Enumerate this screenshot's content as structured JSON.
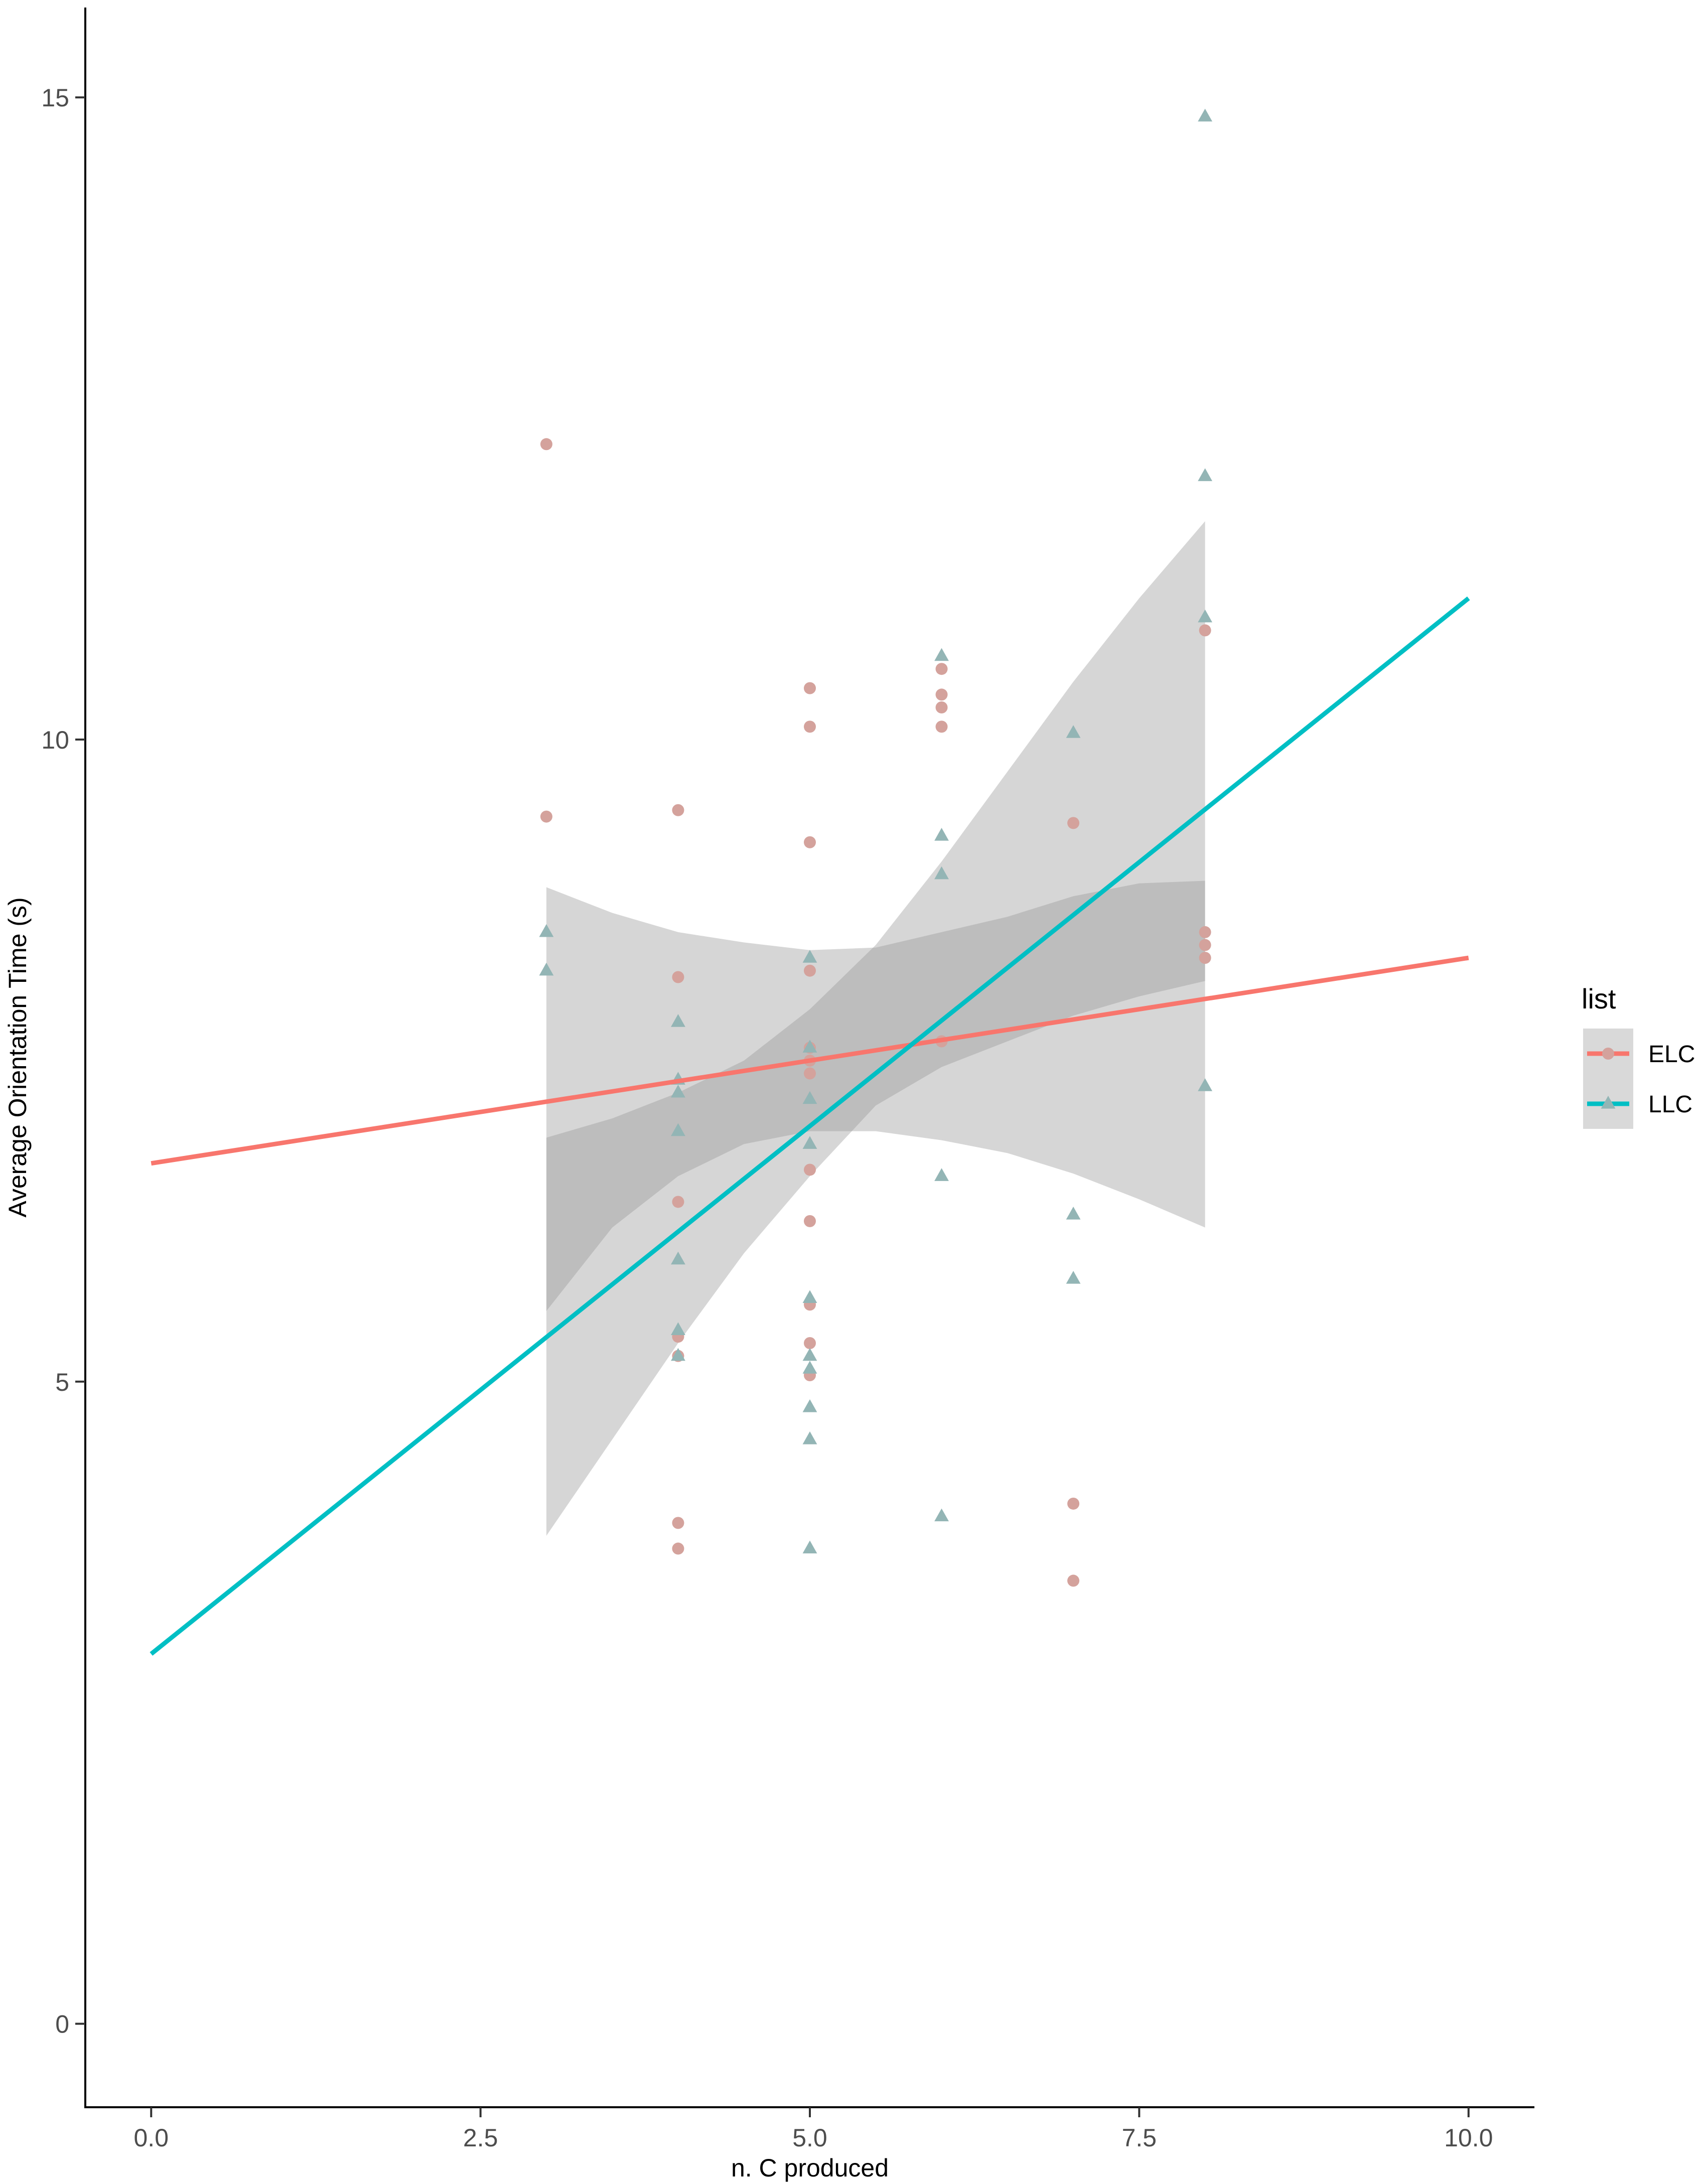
{
  "chart_data": {
    "type": "scatter",
    "title": "",
    "xlabel": "n. C produced",
    "ylabel": "Average Orientation Time (s)",
    "xlim": [
      -0.5,
      10.5
    ],
    "ylim": [
      -0.65,
      15.7
    ],
    "x_ticks": [
      0,
      2.5,
      5,
      7.5,
      10
    ],
    "x_tick_labels": [
      "0.0",
      "2.5",
      "5.0",
      "7.5",
      "10.0"
    ],
    "y_ticks": [
      0,
      5,
      10,
      15
    ],
    "y_tick_labels": [
      "0",
      "5",
      "10",
      "15"
    ],
    "grid": false,
    "legend": {
      "title": "list",
      "placement": "right"
    },
    "series": [
      {
        "name": "ELC",
        "color": "#F8766D",
        "point_color": "#D4A29C",
        "marker": "circle",
        "points": [
          {
            "x": 3,
            "y": 12.3
          },
          {
            "x": 3,
            "y": 9.4
          },
          {
            "x": 4,
            "y": 9.45
          },
          {
            "x": 4,
            "y": 8.15
          },
          {
            "x": 4,
            "y": 6.4
          },
          {
            "x": 4,
            "y": 5.35
          },
          {
            "x": 4,
            "y": 5.2
          },
          {
            "x": 4,
            "y": 3.9
          },
          {
            "x": 4,
            "y": 3.7
          },
          {
            "x": 5,
            "y": 10.4
          },
          {
            "x": 5,
            "y": 10.1
          },
          {
            "x": 5,
            "y": 9.2
          },
          {
            "x": 5,
            "y": 8.2
          },
          {
            "x": 5,
            "y": 7.6
          },
          {
            "x": 5,
            "y": 7.5
          },
          {
            "x": 5,
            "y": 7.4
          },
          {
            "x": 5,
            "y": 6.65
          },
          {
            "x": 5,
            "y": 6.25
          },
          {
            "x": 5,
            "y": 5.6
          },
          {
            "x": 5,
            "y": 5.3
          },
          {
            "x": 5,
            "y": 5.05
          },
          {
            "x": 6,
            "y": 10.55
          },
          {
            "x": 6,
            "y": 10.35
          },
          {
            "x": 6,
            "y": 10.25
          },
          {
            "x": 6,
            "y": 10.1
          },
          {
            "x": 6,
            "y": 7.65
          },
          {
            "x": 7,
            "y": 9.35
          },
          {
            "x": 7,
            "y": 4.05
          },
          {
            "x": 7,
            "y": 3.45
          },
          {
            "x": 8,
            "y": 10.85
          },
          {
            "x": 8,
            "y": 8.5
          },
          {
            "x": 8,
            "y": 8.4
          },
          {
            "x": 8,
            "y": 8.3
          }
        ],
        "fit": {
          "intercept": 6.7,
          "slope": 0.16,
          "x_range": [
            0,
            10
          ]
        },
        "ci": {
          "x": [
            3,
            3.5,
            4,
            4.5,
            5,
            5.5,
            6,
            6.5,
            7,
            7.5,
            8
          ],
          "lower": [
            5.55,
            6.2,
            6.6,
            6.85,
            6.95,
            6.95,
            6.88,
            6.78,
            6.62,
            6.42,
            6.2
          ],
          "upper": [
            8.85,
            8.65,
            8.5,
            8.42,
            8.36,
            8.38,
            8.5,
            8.62,
            8.78,
            8.88,
            8.9
          ]
        }
      },
      {
        "name": "LLC",
        "color": "#00BFC4",
        "point_color": "#93B5B5",
        "marker": "triangle",
        "points": [
          {
            "x": 3,
            "y": 8.5
          },
          {
            "x": 3,
            "y": 8.2
          },
          {
            "x": 4,
            "y": 7.8
          },
          {
            "x": 4,
            "y": 7.35
          },
          {
            "x": 4,
            "y": 7.25
          },
          {
            "x": 4,
            "y": 6.95
          },
          {
            "x": 4,
            "y": 5.95
          },
          {
            "x": 4,
            "y": 5.4
          },
          {
            "x": 4,
            "y": 5.2
          },
          {
            "x": 5,
            "y": 8.3
          },
          {
            "x": 5,
            "y": 7.6
          },
          {
            "x": 5,
            "y": 7.2
          },
          {
            "x": 5,
            "y": 6.85
          },
          {
            "x": 5,
            "y": 5.65
          },
          {
            "x": 5,
            "y": 5.2
          },
          {
            "x": 5,
            "y": 5.1
          },
          {
            "x": 5,
            "y": 4.8
          },
          {
            "x": 5,
            "y": 4.55
          },
          {
            "x": 5,
            "y": 3.7
          },
          {
            "x": 6,
            "y": 10.65
          },
          {
            "x": 6,
            "y": 9.25
          },
          {
            "x": 6,
            "y": 8.95
          },
          {
            "x": 6,
            "y": 6.6
          },
          {
            "x": 6,
            "y": 3.95
          },
          {
            "x": 7,
            "y": 10.05
          },
          {
            "x": 7,
            "y": 6.3
          },
          {
            "x": 7,
            "y": 5.8
          },
          {
            "x": 8,
            "y": 14.85
          },
          {
            "x": 8,
            "y": 12.05
          },
          {
            "x": 8,
            "y": 10.95
          },
          {
            "x": 8,
            "y": 7.3
          }
        ],
        "fit": {
          "intercept": 2.88,
          "slope": 0.822,
          "x_range": [
            0,
            10
          ]
        },
        "ci": {
          "x": [
            3,
            3.5,
            4,
            4.5,
            5,
            5.5,
            6,
            6.5,
            7,
            7.5,
            8
          ],
          "lower": [
            3.8,
            4.55,
            5.3,
            6.0,
            6.6,
            7.15,
            7.45,
            7.65,
            7.85,
            8.0,
            8.12
          ],
          "upper": [
            6.9,
            7.05,
            7.25,
            7.5,
            7.9,
            8.4,
            9.05,
            9.75,
            10.45,
            11.1,
            11.7
          ]
        }
      }
    ]
  }
}
